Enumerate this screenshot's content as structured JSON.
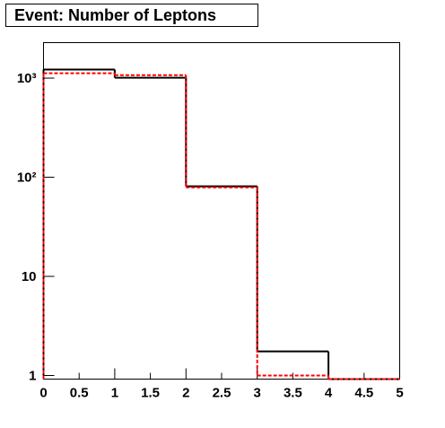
{
  "chart_data": {
    "type": "step-histogram",
    "title": "Event: Number of Leptons",
    "bins": [
      0,
      1,
      2,
      3,
      4,
      5
    ],
    "series": [
      {
        "color": "#000000",
        "dash": false,
        "values": [
          1220,
          1010,
          81,
          1.75,
          0
        ]
      },
      {
        "color": "#ff0000",
        "dash": true,
        "values": [
          1120,
          1070,
          79,
          1.0,
          0
        ]
      }
    ],
    "xlim": [
      0,
      5
    ],
    "xticks": [
      0,
      0.5,
      1,
      1.5,
      2,
      2.5,
      3,
      3.5,
      4,
      4.5,
      5
    ],
    "ylim": [
      0.92,
      2280
    ],
    "ylog": true,
    "yticks": [
      1,
      10,
      {
        "value": 100,
        "label": "10²"
      },
      {
        "value": 1000,
        "label": "10³"
      }
    ]
  }
}
